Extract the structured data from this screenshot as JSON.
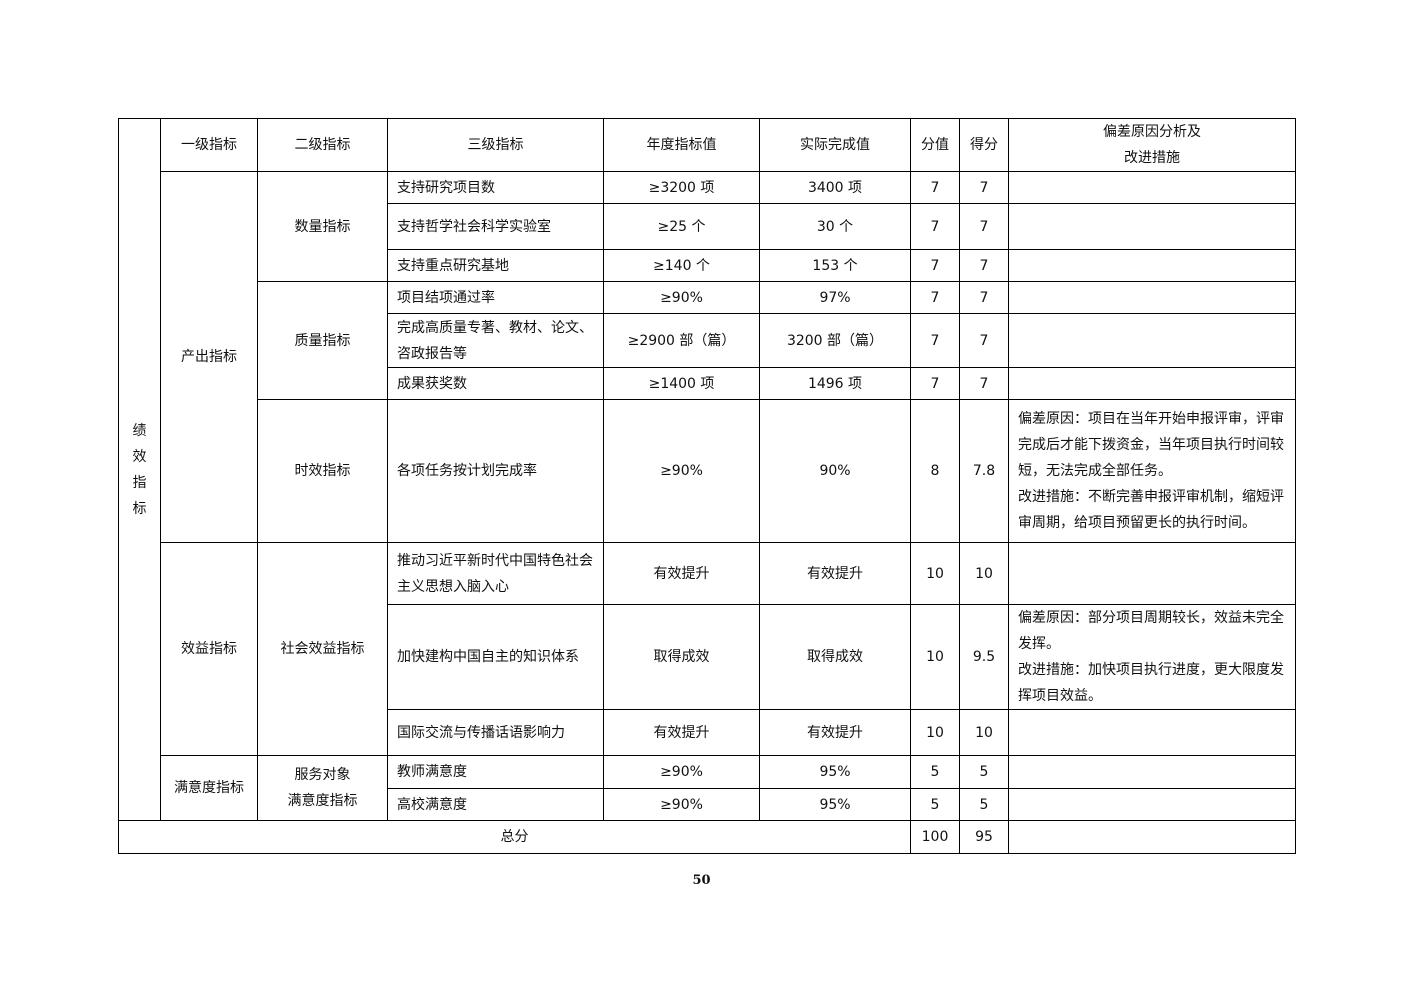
{
  "header": {
    "col1": "一级指标",
    "col2": "二级指标",
    "col3": "三级指标",
    "col4": "年度指标值",
    "col5": "实际完成值",
    "col6": "分值",
    "col7": "得分",
    "col8_line1": "偏差原因分析及",
    "col8_line2": "改进措施"
  },
  "side_label": "绩效指标",
  "groups": {
    "output": "产出指标",
    "quantity": "数量指标",
    "quality": "质量指标",
    "timeliness": "时效指标",
    "benefit": "效益指标",
    "social_benefit": "社会效益指标",
    "satisfaction": "满意度指标",
    "service_satisfaction_line1": "服务对象",
    "service_satisfaction_line2": "满意度指标"
  },
  "rows": [
    {
      "name": "支持研究项目数",
      "target": "≥3200 项",
      "actual": "3400 项",
      "weight": "7",
      "score": "7",
      "note": ""
    },
    {
      "name": "支持哲学社会科学实验室",
      "target": "≥25 个",
      "actual": "30 个",
      "weight": "7",
      "score": "7",
      "note": ""
    },
    {
      "name": "支持重点研究基地",
      "target": "≥140 个",
      "actual": "153 个",
      "weight": "7",
      "score": "7",
      "note": ""
    },
    {
      "name": "项目结项通过率",
      "target": "≥90%",
      "actual": "97%",
      "weight": "7",
      "score": "7",
      "note": ""
    },
    {
      "name": "完成高质量专著、教材、论文、咨政报告等",
      "target": "≥2900 部（篇）",
      "actual": "3200 部（篇）",
      "weight": "7",
      "score": "7",
      "note": ""
    },
    {
      "name": "成果获奖数",
      "target": "≥1400 项",
      "actual": "1496 项",
      "weight": "7",
      "score": "7",
      "note": ""
    },
    {
      "name": "各项任务按计划完成率",
      "target": "≥90%",
      "actual": "90%",
      "weight": "8",
      "score": "7.8",
      "note": "偏差原因：项目在当年开始申报评审，评审完成后才能下拨资金，当年项目执行时间较短，无法完成全部任务。\n改进措施：不断完善申报评审机制，缩短评审周期，给项目预留更长的执行时间。"
    },
    {
      "name": "推动习近平新时代中国特色社会主义思想入脑入心",
      "target": "有效提升",
      "actual": "有效提升",
      "weight": "10",
      "score": "10",
      "note": ""
    },
    {
      "name": "加快建构中国自主的知识体系",
      "target": "取得成效",
      "actual": "取得成效",
      "weight": "10",
      "score": "9.5",
      "note": "偏差原因：部分项目周期较长，效益未完全发挥。\n改进措施：加快项目执行进度，更大限度发挥项目效益。"
    },
    {
      "name": "国际交流与传播话语影响力",
      "target": "有效提升",
      "actual": "有效提升",
      "weight": "10",
      "score": "10",
      "note": ""
    },
    {
      "name": "教师满意度",
      "target": "≥90%",
      "actual": "95%",
      "weight": "5",
      "score": "5",
      "note": ""
    },
    {
      "name": "高校满意度",
      "target": "≥90%",
      "actual": "95%",
      "weight": "5",
      "score": "5",
      "note": ""
    }
  ],
  "total": {
    "label": "总分",
    "weight": "100",
    "score": "95",
    "note": ""
  },
  "page_number": "50"
}
